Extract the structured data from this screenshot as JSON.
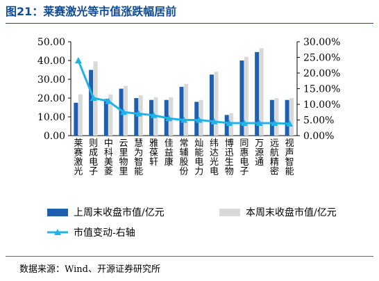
{
  "title": "图21：莱赛激光等市值涨跌幅居前",
  "source": "数据来源：Wind、开源证券研究所",
  "colors": {
    "bar_prev": "#1f5fb0",
    "bar_curr": "#d9d9d9",
    "line": "#1fb3e8",
    "title": "#0f4c97"
  },
  "chart_data": {
    "type": "bar+line",
    "categories": [
      "莱赛激光",
      "则成电子",
      "中科美菱",
      "云里物里",
      "慧为智能",
      "雅葆轩",
      "佳益康",
      "常辅股份",
      "灿能电力",
      "纬达光电",
      "博迅生物",
      "同惠电子",
      "万源通",
      "远航精密",
      "视声智能"
    ],
    "series": [
      {
        "name": "上周末收盘市值/亿元",
        "type": "bar",
        "axis": "left",
        "values": [
          17.5,
          35.0,
          19.5,
          25.0,
          20.0,
          19.0,
          19.0,
          26.0,
          18.0,
          32.5,
          11.0,
          40.0,
          44.5,
          19.0,
          19.0
        ]
      },
      {
        "name": "本周末收盘市值/亿元",
        "type": "bar",
        "axis": "left",
        "values": [
          22.0,
          39.5,
          22.0,
          26.5,
          21.5,
          20.5,
          20.5,
          27.5,
          19.0,
          34.0,
          12.0,
          42.0,
          46.5,
          20.0,
          20.0
        ]
      },
      {
        "name": "市值变动-右轴",
        "type": "line",
        "axis": "right",
        "values": [
          0.24,
          0.12,
          0.11,
          0.075,
          0.07,
          0.065,
          0.055,
          0.05,
          0.05,
          0.045,
          0.04,
          0.04,
          0.04,
          0.04,
          0.038
        ]
      }
    ],
    "y_left": {
      "ylim": [
        0,
        50
      ],
      "ticks": [
        "0.00",
        "10.00",
        "20.00",
        "30.00",
        "40.00",
        "50.00"
      ]
    },
    "y_right": {
      "ylim": [
        0,
        0.3
      ],
      "ticks": [
        "0.00%",
        "5.00%",
        "10.00%",
        "15.00%",
        "20.00%",
        "25.00%",
        "30.00%"
      ]
    },
    "legend_position": "bottom",
    "grid": false
  }
}
